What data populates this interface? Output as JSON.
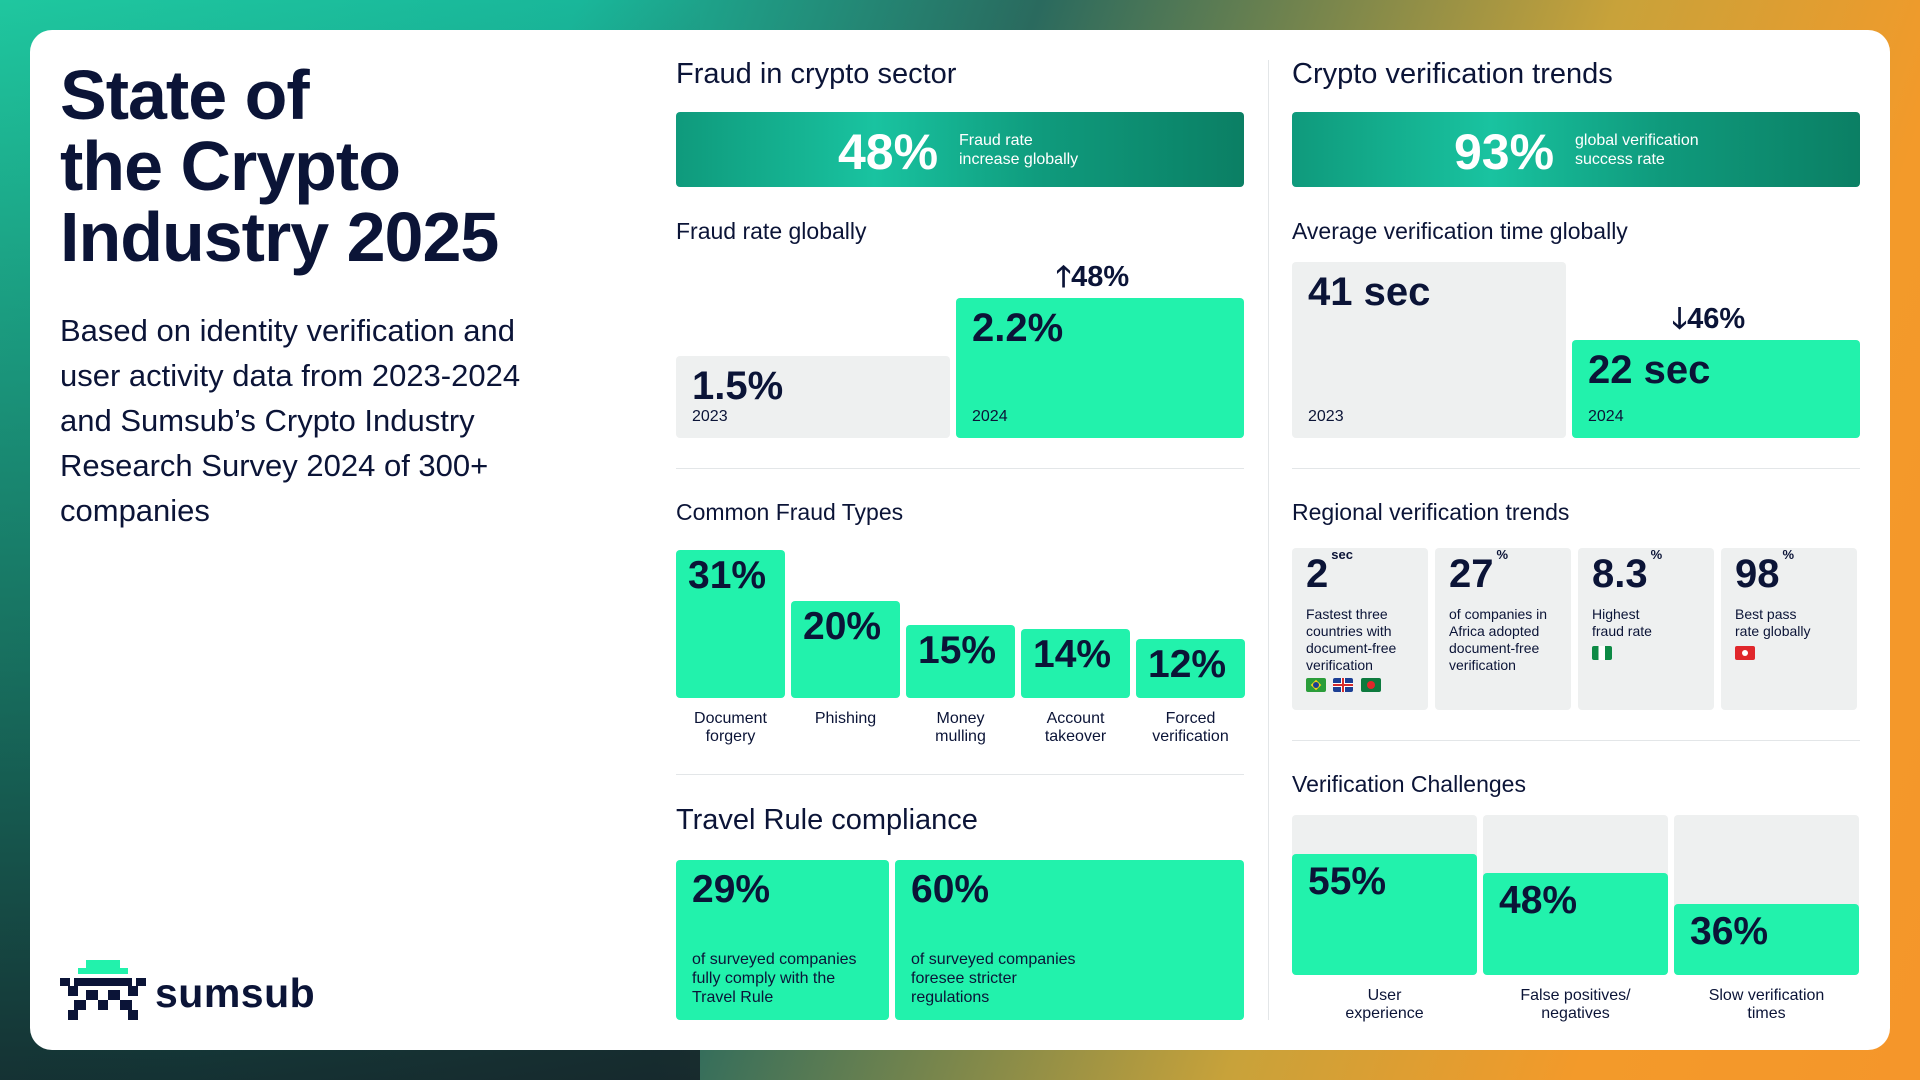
{
  "title": "State of the Crypto Industry 2025",
  "title_lines": [
    "State of",
    "the Crypto",
    "Industry 2025"
  ],
  "subtitle": "Based on identity verification and user activity data from 2023-2024 and Sumsub’s Crypto Industry Research Survey 2024 of 300+ companies",
  "brand": {
    "name": "sumsub"
  },
  "fraud": {
    "heading": "Fraud in crypto sector",
    "banner": {
      "value": "48%",
      "label_line1": "Fraud rate",
      "label_line2": "increase globally"
    },
    "rate_heading": "Fraud rate globally",
    "y2023": {
      "value": "1.5%",
      "year": "2023"
    },
    "y2024": {
      "value": "2.2%",
      "year": "2024"
    },
    "delta": "48%",
    "delta_direction": "up"
  },
  "fraud_types": {
    "heading": "Common Fraud Types",
    "items": [
      {
        "value": "31%",
        "pct": 31,
        "line1": "Document",
        "line2": "forgery"
      },
      {
        "value": "20%",
        "pct": 20,
        "line1": "Phishing",
        "line2": ""
      },
      {
        "value": "15%",
        "pct": 15,
        "line1": "Money",
        "line2": "mulling"
      },
      {
        "value": "14%",
        "pct": 14,
        "line1": "Account",
        "line2": "takeover"
      },
      {
        "value": "12%",
        "pct": 12,
        "line1": "Forced",
        "line2": "verification"
      }
    ]
  },
  "travel_rule": {
    "heading": "Travel Rule compliance",
    "items": [
      {
        "value": "29%",
        "line1": "of surveyed companies",
        "line2": "fully comply with the",
        "line3": "Travel Rule"
      },
      {
        "value": "60%",
        "line1": "of surveyed companies",
        "line2": "foresee stricter",
        "line3": "regulations"
      }
    ]
  },
  "verification": {
    "heading": "Crypto verification trends",
    "banner": {
      "value": "93%",
      "label_line1": "global verification",
      "label_line2": "success rate"
    },
    "time_heading": "Average verification time globally",
    "y2023": {
      "value": "41 sec",
      "year": "2023"
    },
    "y2024": {
      "value": "22 sec",
      "year": "2024"
    },
    "delta": "46%",
    "delta_direction": "down"
  },
  "regional": {
    "heading": "Regional verification trends",
    "items": [
      {
        "value": "2",
        "unit": "sec",
        "line1": "Fastest three",
        "line2": "countries with",
        "line3": "document-free",
        "line4": "verification",
        "flags": [
          "brazil-flag",
          "uk-flag",
          "bangladesh-flag"
        ]
      },
      {
        "value": "27",
        "unit": "%",
        "line1": "of companies in",
        "line2": "Africa adopted",
        "line3": "document-free",
        "line4": "verification",
        "flags": []
      },
      {
        "value": "8.3",
        "unit": "%",
        "line1": "Highest",
        "line2": "fraud rate",
        "line3": "",
        "line4": "",
        "flags": [
          "nigeria-flag"
        ]
      },
      {
        "value": "98",
        "unit": "%",
        "line1": "Best pass",
        "line2": "rate globally",
        "line3": "",
        "line4": "",
        "flags": [
          "hong-kong-flag"
        ]
      }
    ]
  },
  "challenges": {
    "heading": "Verification Challenges",
    "items": [
      {
        "value": "55%",
        "pct": 55,
        "line1": "User",
        "line2": "experience"
      },
      {
        "value": "48%",
        "pct": 48,
        "line1": "False positives/",
        "line2": "negatives"
      },
      {
        "value": "36%",
        "pct": 36,
        "line1": "Slow verification",
        "line2": "times"
      }
    ]
  },
  "colors": {
    "accent_green": "#22f2ac",
    "banner_teal": "#0f9a7c",
    "text_navy": "#0b1437",
    "grey_box": "#eef0f0"
  }
}
